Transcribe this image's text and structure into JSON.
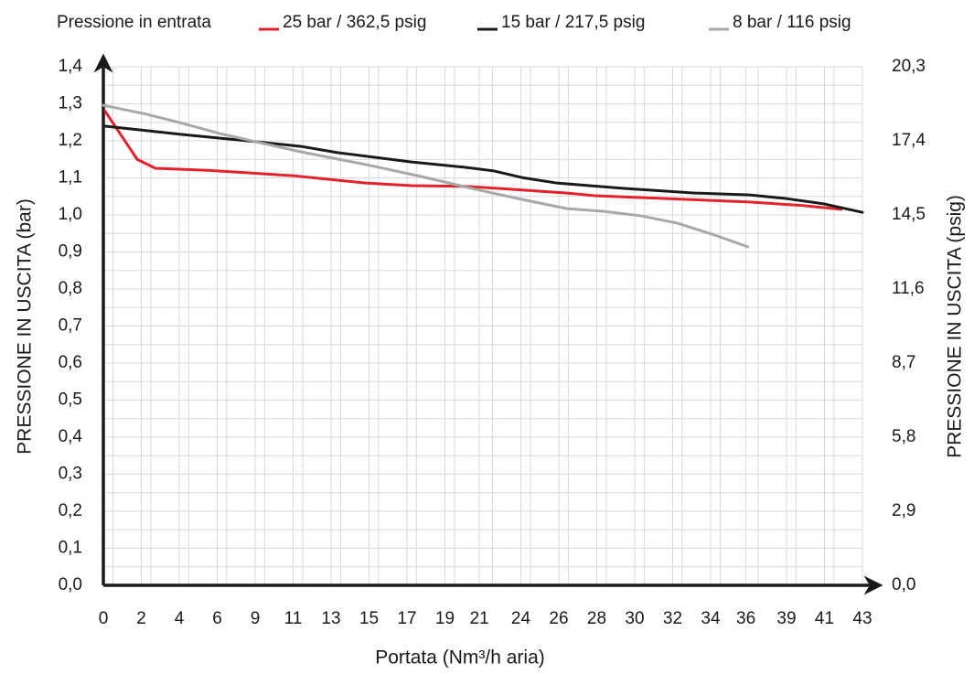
{
  "chart_data": {
    "type": "line",
    "legend_title": "Pressione in entrata",
    "xlabel": "Portata (Nm³/h aria)",
    "ylabel": "PRESSIONE IN USCITA  (bar)",
    "y2label": "PRESSIONE IN USCITA  (psig)",
    "xlim": [
      0,
      43
    ],
    "xticks": [
      {
        "value": 0,
        "label": "0"
      },
      {
        "value": 2.15,
        "label": "2"
      },
      {
        "value": 4.3,
        "label": "4"
      },
      {
        "value": 6.45,
        "label": "6"
      },
      {
        "value": 8.6,
        "label": "9"
      },
      {
        "value": 10.75,
        "label": "11"
      },
      {
        "value": 12.9,
        "label": "13"
      },
      {
        "value": 15.05,
        "label": "15"
      },
      {
        "value": 17.2,
        "label": "17"
      },
      {
        "value": 19.35,
        "label": "19"
      },
      {
        "value": 21.3,
        "label": "21"
      },
      {
        "value": 23.65,
        "label": "24"
      },
      {
        "value": 25.8,
        "label": "26"
      },
      {
        "value": 27.95,
        "label": "28"
      },
      {
        "value": 30.1,
        "label": "30"
      },
      {
        "value": 32.25,
        "label": "32"
      },
      {
        "value": 34.4,
        "label": "34"
      },
      {
        "value": 36.4,
        "label": "36"
      },
      {
        "value": 38.7,
        "label": "39"
      },
      {
        "value": 40.85,
        "label": "41"
      },
      {
        "value": 43,
        "label": "43"
      }
    ],
    "ylim": [
      0,
      1.4
    ],
    "yticks": [
      {
        "value": 0,
        "label": "0,0"
      },
      {
        "value": 0.1,
        "label": "0,1"
      },
      {
        "value": 0.2,
        "label": "0,2"
      },
      {
        "value": 0.3,
        "label": "0,3"
      },
      {
        "value": 0.4,
        "label": "0,4"
      },
      {
        "value": 0.5,
        "label": "0,5"
      },
      {
        "value": 0.6,
        "label": "0,6"
      },
      {
        "value": 0.7,
        "label": "0,7"
      },
      {
        "value": 0.8,
        "label": "0,8"
      },
      {
        "value": 0.9,
        "label": "0,9"
      },
      {
        "value": 1.0,
        "label": "1,0"
      },
      {
        "value": 1.1,
        "label": "1,1"
      },
      {
        "value": 1.2,
        "label": "1,2"
      },
      {
        "value": 1.3,
        "label": "1,3"
      },
      {
        "value": 1.4,
        "label": "1,4"
      }
    ],
    "y2lim": [
      0,
      20.3
    ],
    "y2ticks": [
      {
        "value": 0,
        "label": "0,0"
      },
      {
        "value": 2.9,
        "label": "2,9"
      },
      {
        "value": 5.8,
        "label": "5,8"
      },
      {
        "value": 8.7,
        "label": "8,7"
      },
      {
        "value": 11.6,
        "label": "11,6"
      },
      {
        "value": 14.5,
        "label": "14,5"
      },
      {
        "value": 17.4,
        "label": "17,4"
      },
      {
        "value": 20.3,
        "label": "20,3"
      }
    ],
    "grid": true,
    "series": [
      {
        "name": "25 bar / 362,5 psig",
        "color": "#e3222b",
        "x": [
          0.1,
          1.92,
          2.95,
          6.06,
          10.72,
          12.8,
          14.87,
          17.46,
          20.57,
          23.16,
          26.26,
          27.82,
          33.0,
          36.6,
          39.7,
          41.8
        ],
        "values": [
          1.28,
          1.15,
          1.126,
          1.12,
          1.106,
          1.096,
          1.086,
          1.079,
          1.077,
          1.069,
          1.059,
          1.052,
          1.042,
          1.035,
          1.025,
          1.015
        ]
      },
      {
        "name": "15 bar / 217,5 psig",
        "color": "#1a1a1a",
        "x": [
          0,
          4.5,
          8.6,
          11.2,
          13.3,
          17.46,
          20.57,
          22.1,
          23.7,
          25.7,
          29.4,
          33.5,
          36.6,
          38.7,
          40.8,
          43
        ],
        "values": [
          1.24,
          1.217,
          1.198,
          1.185,
          1.168,
          1.143,
          1.128,
          1.119,
          1.101,
          1.086,
          1.072,
          1.059,
          1.054,
          1.044,
          1.03,
          1.007
        ]
      },
      {
        "name": "8 bar / 116 psig",
        "color": "#a8a8a8",
        "x": [
          0,
          2.43,
          4.5,
          6.58,
          8.6,
          11.2,
          14.87,
          17.98,
          21.1,
          23.7,
          26.26,
          28.3,
          30.4,
          32.5,
          34.6,
          36.5
        ],
        "values": [
          1.296,
          1.272,
          1.247,
          1.22,
          1.198,
          1.17,
          1.136,
          1.104,
          1.069,
          1.042,
          1.017,
          1.01,
          0.998,
          0.978,
          0.946,
          0.914
        ]
      }
    ]
  }
}
